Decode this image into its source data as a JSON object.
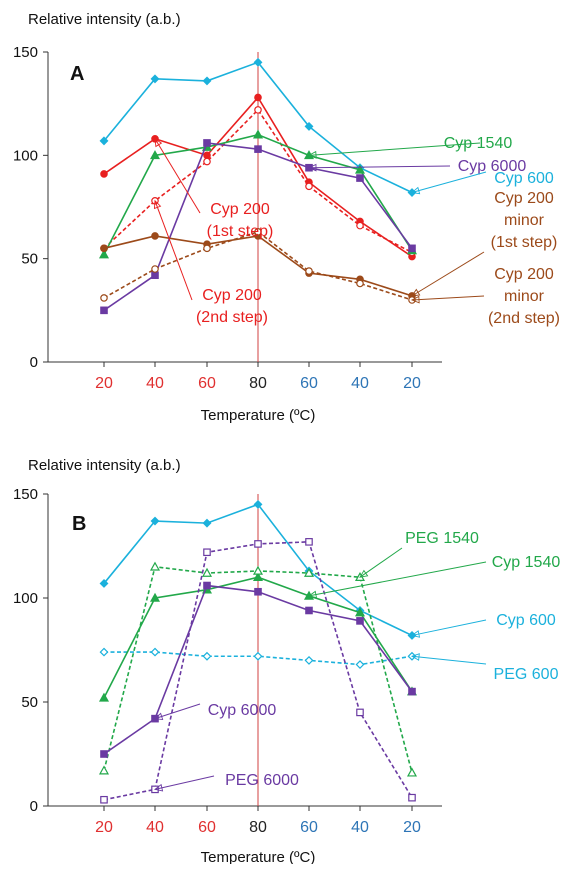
{
  "chart_data": [
    {
      "type": "line",
      "panel_label": "A",
      "ylabel": "Relative intensity (a.b.)",
      "xlabel": "Temperature (ºC)",
      "ylim": [
        0,
        150
      ],
      "yticks": [
        0,
        50,
        100,
        150
      ],
      "categories": [
        "20",
        "40",
        "60",
        "80",
        "60",
        "40",
        "20"
      ],
      "category_colors": [
        "#e03030",
        "#e03030",
        "#e03030",
        "#222222",
        "#2e75b6",
        "#2e75b6",
        "#2e75b6"
      ],
      "reference_line_at": "80",
      "series": [
        {
          "label": "Cyp 600",
          "color": "#1bb1dc",
          "marker": "diamond",
          "fill": true,
          "dashed": false,
          "values": [
            107,
            137,
            136,
            145,
            114,
            94,
            82
          ]
        },
        {
          "label": "Cyp 200 (1st step)",
          "color": "#e82020",
          "marker": "circle",
          "fill": true,
          "dashed": false,
          "values": [
            91,
            108,
            100,
            128,
            87,
            68,
            51
          ]
        },
        {
          "label": "Cyp 200 (2nd step)",
          "color": "#e82020",
          "marker": "circle",
          "fill": false,
          "dashed": true,
          "values": [
            55,
            78,
            97,
            122,
            85,
            66,
            53
          ]
        },
        {
          "label": "Cyp 1540",
          "color": "#22a84a",
          "marker": "triangle",
          "fill": true,
          "dashed": false,
          "values": [
            52,
            100,
            104,
            110,
            100,
            93,
            54
          ]
        },
        {
          "label": "Cyp 6000",
          "color": "#6a3aa2",
          "marker": "square",
          "fill": true,
          "dashed": false,
          "values": [
            25,
            42,
            106,
            103,
            94,
            89,
            55
          ]
        },
        {
          "label": "Cyp 200 minor (1st step)",
          "color": "#9c4a1a",
          "marker": "circle",
          "fill": true,
          "dashed": false,
          "values": [
            55,
            61,
            57,
            61,
            43,
            40,
            32
          ]
        },
        {
          "label": "Cyp 200 minor (2nd step)",
          "color": "#9c4a1a",
          "marker": "circle",
          "fill": false,
          "dashed": true,
          "values": [
            31,
            45,
            55,
            63,
            44,
            38,
            30
          ]
        }
      ],
      "annotations": [
        {
          "lines": [
            "Cyp 1540"
          ],
          "color": "#22a84a",
          "target_series": 3,
          "target_index": 4
        },
        {
          "lines": [
            "Cyp 6000"
          ],
          "color": "#6a3aa2",
          "target_series": 4,
          "target_index": 4
        },
        {
          "lines": [
            "Cyp 600"
          ],
          "color": "#1bb1dc",
          "target_series": 0,
          "target_index": 6
        },
        {
          "lines": [
            "Cyp 200",
            "(1st step)"
          ],
          "color": "#e82020",
          "target_series": 1,
          "target_index": 1
        },
        {
          "lines": [
            "Cyp 200",
            "(2nd step)"
          ],
          "color": "#e82020",
          "target_series": 2,
          "target_index": 1
        },
        {
          "lines": [
            "Cyp 200",
            "minor",
            "(1st step)"
          ],
          "color": "#9c4a1a",
          "target_series": 5,
          "target_index": 6
        },
        {
          "lines": [
            "Cyp 200",
            "minor",
            "(2nd step)"
          ],
          "color": "#9c4a1a",
          "target_series": 6,
          "target_index": 6
        }
      ]
    },
    {
      "type": "line",
      "panel_label": "B",
      "ylabel": "Relative intensity (a.b.)",
      "xlabel": "Temperature (ºC)",
      "ylim": [
        0,
        150
      ],
      "yticks": [
        0,
        50,
        100,
        150
      ],
      "categories": [
        "20",
        "40",
        "60",
        "80",
        "60",
        "40",
        "20"
      ],
      "category_colors": [
        "#e03030",
        "#e03030",
        "#e03030",
        "#222222",
        "#2e75b6",
        "#2e75b6",
        "#2e75b6"
      ],
      "reference_line_at": "80",
      "series": [
        {
          "label": "Cyp 600",
          "color": "#1bb1dc",
          "marker": "diamond",
          "fill": true,
          "dashed": false,
          "values": [
            107,
            137,
            136,
            145,
            113,
            94,
            82
          ]
        },
        {
          "label": "PEG 600",
          "color": "#1bb1dc",
          "marker": "diamond",
          "fill": false,
          "dashed": true,
          "values": [
            74,
            74,
            72,
            72,
            70,
            68,
            72
          ]
        },
        {
          "label": "Cyp 1540",
          "color": "#22a84a",
          "marker": "triangle",
          "fill": true,
          "dashed": false,
          "values": [
            52,
            100,
            104,
            110,
            101,
            93,
            55
          ]
        },
        {
          "label": "PEG 1540",
          "color": "#22a84a",
          "marker": "triangle",
          "fill": false,
          "dashed": true,
          "values": [
            17,
            115,
            112,
            113,
            112,
            110,
            16
          ]
        },
        {
          "label": "Cyp 6000",
          "color": "#6a3aa2",
          "marker": "square",
          "fill": true,
          "dashed": false,
          "values": [
            25,
            42,
            106,
            103,
            94,
            89,
            55
          ]
        },
        {
          "label": "PEG 6000",
          "color": "#6a3aa2",
          "marker": "square",
          "fill": false,
          "dashed": true,
          "values": [
            3,
            8,
            122,
            126,
            127,
            45,
            4
          ]
        }
      ],
      "annotations": [
        {
          "lines": [
            "PEG 1540"
          ],
          "color": "#22a84a",
          "target_series": 3,
          "target_index": 5
        },
        {
          "lines": [
            "Cyp 1540"
          ],
          "color": "#22a84a",
          "target_series": 2,
          "target_index": 4
        },
        {
          "lines": [
            "Cyp 600"
          ],
          "color": "#1bb1dc",
          "target_series": 0,
          "target_index": 6
        },
        {
          "lines": [
            "PEG 600"
          ],
          "color": "#1bb1dc",
          "target_series": 1,
          "target_index": 6
        },
        {
          "lines": [
            "Cyp 6000"
          ],
          "color": "#6a3aa2",
          "target_series": 4,
          "target_index": 1
        },
        {
          "lines": [
            "PEG 6000"
          ],
          "color": "#6a3aa2",
          "target_series": 5,
          "target_index": 1
        }
      ]
    }
  ]
}
